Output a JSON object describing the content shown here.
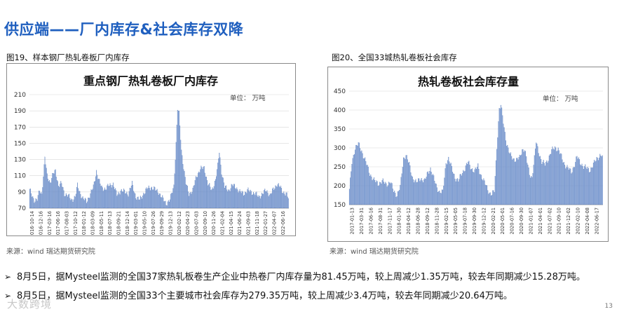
{
  "slide": {
    "title": "供应端——厂内库存&社会库存双降",
    "page_number": "13",
    "logo_text": "大数跨境"
  },
  "captions": {
    "left": "图19、样本钢厂热轧卷板厂内库存",
    "right": "图20、全国33城热轧卷板社会库存"
  },
  "sources": {
    "left": "来源：wind   瑞达期货研究院",
    "right": "来源：wind   瑞达期货研究院"
  },
  "bullets": [
    {
      "mark": "➢",
      "text": "8月5日，据Mysteel监测的全国37家热轧板卷生产企业中热卷厂内库存量为81.45万吨，较上周减少1.35万吨，较去年同期减少15.28万吨。"
    },
    {
      "mark": "➢",
      "text": "8月5日，据Mysteel监测的全国33个主要城市社会库存为279.35万吨，较上周减少3.4万吨，较去年同期减少20.64万吨。"
    }
  ],
  "colors": {
    "title": "#1f5fbf",
    "bar": "#7f9fd6",
    "bar_edge": "#4a6fb0",
    "grid": "#d8d8d8"
  },
  "chart_data": [
    {
      "type": "bar",
      "title": "重点钢厂热轧卷板厂内库存",
      "unit_label": "单位：  万吨",
      "ylim": [
        70,
        210
      ],
      "yticks": [
        70,
        90,
        110,
        130,
        150,
        170,
        190,
        210
      ],
      "xtick_labels": [
        "2016-10-14",
        "2016-12-16",
        "2017-03-16",
        "2017-06-16",
        "2017-08-03",
        "2017-10-12",
        "2018-01-12",
        "2018-03-09",
        "2018-05-11",
        "2018-07-13",
        "2018-09-21",
        "2018-12-14",
        "2019-03-01",
        "2019-05-10",
        "2019-07-26",
        "2019-09-29",
        "2019-12-13",
        "2020-02-12",
        "2020-04-23",
        "2020-07-03",
        "2020-09-10",
        "2020-11-26",
        "2021-02-04",
        "2021-04-15",
        "2021-06-24",
        "2021-09-03",
        "2021-11-18",
        "2022-01-27",
        "2022-04-07",
        "2022-06-16"
      ],
      "anchors": [
        [
          0,
          92
        ],
        [
          6,
          80
        ],
        [
          10,
          80
        ],
        [
          13,
          92
        ],
        [
          16,
          88
        ],
        [
          20,
          132
        ],
        [
          23,
          110
        ],
        [
          27,
          102
        ],
        [
          31,
          112
        ],
        [
          34,
          116
        ],
        [
          38,
          98
        ],
        [
          42,
          100
        ],
        [
          46,
          88
        ],
        [
          50,
          86
        ],
        [
          55,
          80
        ],
        [
          60,
          84
        ],
        [
          63,
          98
        ],
        [
          66,
          90
        ],
        [
          70,
          82
        ],
        [
          75,
          78
        ],
        [
          80,
          88
        ],
        [
          84,
          96
        ],
        [
          88,
          116
        ],
        [
          91,
          105
        ],
        [
          95,
          95
        ],
        [
          100,
          94
        ],
        [
          105,
          98
        ],
        [
          110,
          100
        ],
        [
          115,
          86
        ],
        [
          120,
          92
        ],
        [
          125,
          90
        ],
        [
          130,
          88
        ],
        [
          135,
          100
        ],
        [
          140,
          84
        ],
        [
          145,
          80
        ],
        [
          150,
          88
        ],
        [
          155,
          94
        ],
        [
          160,
          96
        ],
        [
          165,
          93
        ],
        [
          170,
          90
        ],
        [
          175,
          82
        ],
        [
          180,
          76
        ],
        [
          185,
          80
        ],
        [
          190,
          98
        ],
        [
          193,
          150
        ],
        [
          195,
          192
        ],
        [
          197,
          186
        ],
        [
          200,
          142
        ],
        [
          203,
          120
        ],
        [
          206,
          100
        ],
        [
          210,
          88
        ],
        [
          215,
          92
        ],
        [
          220,
          110
        ],
        [
          225,
          118
        ],
        [
          230,
          120
        ],
        [
          235,
          100
        ],
        [
          240,
          92
        ],
        [
          245,
          105
        ],
        [
          248,
          122
        ],
        [
          250,
          140
        ],
        [
          253,
          115
        ],
        [
          257,
          96
        ],
        [
          262,
          92
        ],
        [
          267,
          98
        ],
        [
          272,
          96
        ],
        [
          277,
          90
        ],
        [
          282,
          88
        ],
        [
          287,
          92
        ],
        [
          292,
          90
        ],
        [
          297,
          88
        ],
        [
          302,
          84
        ],
        [
          307,
          88
        ],
        [
          312,
          92
        ],
        [
          317,
          86
        ],
        [
          322,
          94
        ],
        [
          326,
          100
        ],
        [
          330,
          96
        ],
        [
          334,
          90
        ],
        [
          338,
          88
        ],
        [
          341,
          82
        ]
      ]
    },
    {
      "type": "bar",
      "title": "热轧卷板社会库存量",
      "unit_label": "单位：  万吨",
      "ylim": [
        150,
        450
      ],
      "yticks": [
        150,
        200,
        250,
        300,
        350,
        400,
        450
      ],
      "xtick_labels": [
        "2017-01-13",
        "2017-03-31",
        "2017-06-16",
        "2017-08-31",
        "2017-11-17",
        "2018-01-30",
        "2018-04-12",
        "2018-06-28",
        "2018-09-12",
        "2018-11-28",
        "2019-02-15",
        "2019-05-05",
        "2019-07-18",
        "2019-09-30",
        "2019-12-12",
        "2020-02-21",
        "2020-05-01",
        "2020-07-16",
        "2020-09-30",
        "2021-01-07",
        "2021-04-01",
        "2021-07-02",
        "2021-09-10",
        "2021-12-02",
        "2022-02-10",
        "2022-04-08",
        "2022-06-17"
      ],
      "anchors": [
        [
          0,
          188
        ],
        [
          3,
          262
        ],
        [
          7,
          300
        ],
        [
          11,
          310
        ],
        [
          15,
          292
        ],
        [
          20,
          262
        ],
        [
          25,
          232
        ],
        [
          30,
          214
        ],
        [
          35,
          206
        ],
        [
          40,
          212
        ],
        [
          45,
          204
        ],
        [
          50,
          210
        ],
        [
          54,
          186
        ],
        [
          58,
          176
        ],
        [
          62,
          196
        ],
        [
          66,
          272
        ],
        [
          69,
          282
        ],
        [
          73,
          256
        ],
        [
          77,
          222
        ],
        [
          82,
          208
        ],
        [
          87,
          220
        ],
        [
          92,
          212
        ],
        [
          96,
          236
        ],
        [
          99,
          246
        ],
        [
          102,
          226
        ],
        [
          106,
          200
        ],
        [
          110,
          184
        ],
        [
          114,
          182
        ],
        [
          118,
          262
        ],
        [
          121,
          272
        ],
        [
          125,
          246
        ],
        [
          129,
          222
        ],
        [
          133,
          212
        ],
        [
          137,
          232
        ],
        [
          141,
          246
        ],
        [
          145,
          262
        ],
        [
          149,
          246
        ],
        [
          153,
          238
        ],
        [
          157,
          252
        ],
        [
          160,
          232
        ],
        [
          164,
          212
        ],
        [
          168,
          196
        ],
        [
          171,
          182
        ],
        [
          174,
          176
        ],
        [
          177,
          186
        ],
        [
          180,
          302
        ],
        [
          183,
          402
        ],
        [
          185,
          412
        ],
        [
          188,
          368
        ],
        [
          192,
          312
        ],
        [
          196,
          282
        ],
        [
          200,
          272
        ],
        [
          204,
          268
        ],
        [
          208,
          274
        ],
        [
          211,
          296
        ],
        [
          214,
          296
        ],
        [
          217,
          262
        ],
        [
          220,
          232
        ],
        [
          223,
          222
        ],
        [
          226,
          272
        ],
        [
          228,
          316
        ],
        [
          231,
          292
        ],
        [
          235,
          262
        ],
        [
          239,
          256
        ],
        [
          243,
          272
        ],
        [
          247,
          292
        ],
        [
          251,
          302
        ],
        [
          255,
          296
        ],
        [
          259,
          276
        ],
        [
          263,
          256
        ],
        [
          267,
          246
        ],
        [
          271,
          236
        ],
        [
          275,
          256
        ],
        [
          278,
          276
        ],
        [
          282,
          262
        ],
        [
          286,
          250
        ],
        [
          290,
          246
        ],
        [
          294,
          242
        ],
        [
          298,
          256
        ],
        [
          302,
          272
        ],
        [
          306,
          280
        ],
        [
          309,
          280
        ]
      ]
    }
  ]
}
